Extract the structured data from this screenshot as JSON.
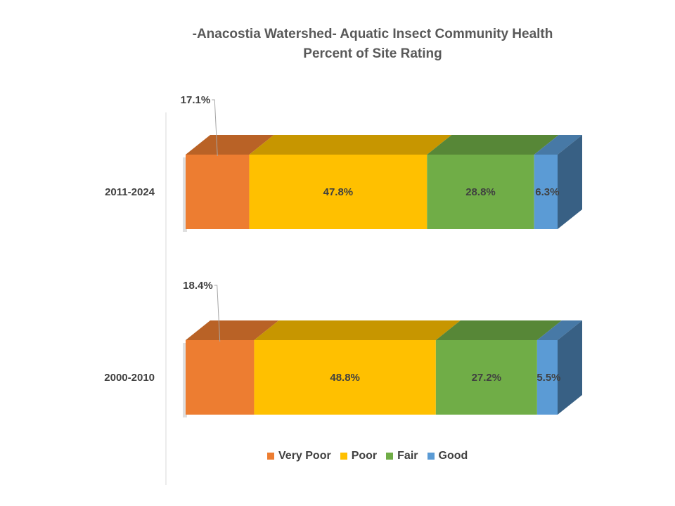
{
  "chart_data": {
    "type": "bar",
    "orientation": "horizontal",
    "stacked": true,
    "percent_stacked": true,
    "three_d": true,
    "title": "-Anacostia Watershed- Aquatic Insect Community Health",
    "subtitle": "Percent of Site Rating",
    "categories": [
      "2011-2024",
      "2000-2010"
    ],
    "series": [
      {
        "name": "Very Poor",
        "color": "#ED7D31",
        "values": [
          17.1,
          18.4
        ],
        "labels": [
          "17.1%",
          "18.4%"
        ]
      },
      {
        "name": "Poor",
        "color": "#FFC000",
        "values": [
          47.8,
          48.8
        ],
        "labels": [
          "47.8%",
          "48.8%"
        ]
      },
      {
        "name": "Fair",
        "color": "#70AD47",
        "values": [
          28.8,
          27.2
        ],
        "labels": [
          "28.8%",
          "27.2%"
        ]
      },
      {
        "name": "Good",
        "color": "#5B9BD5",
        "values": [
          6.3,
          5.5
        ],
        "labels": [
          "6.3%",
          "5.5%"
        ]
      }
    ],
    "xlim": [
      0,
      100
    ],
    "grid": false,
    "legend_position": "bottom"
  }
}
